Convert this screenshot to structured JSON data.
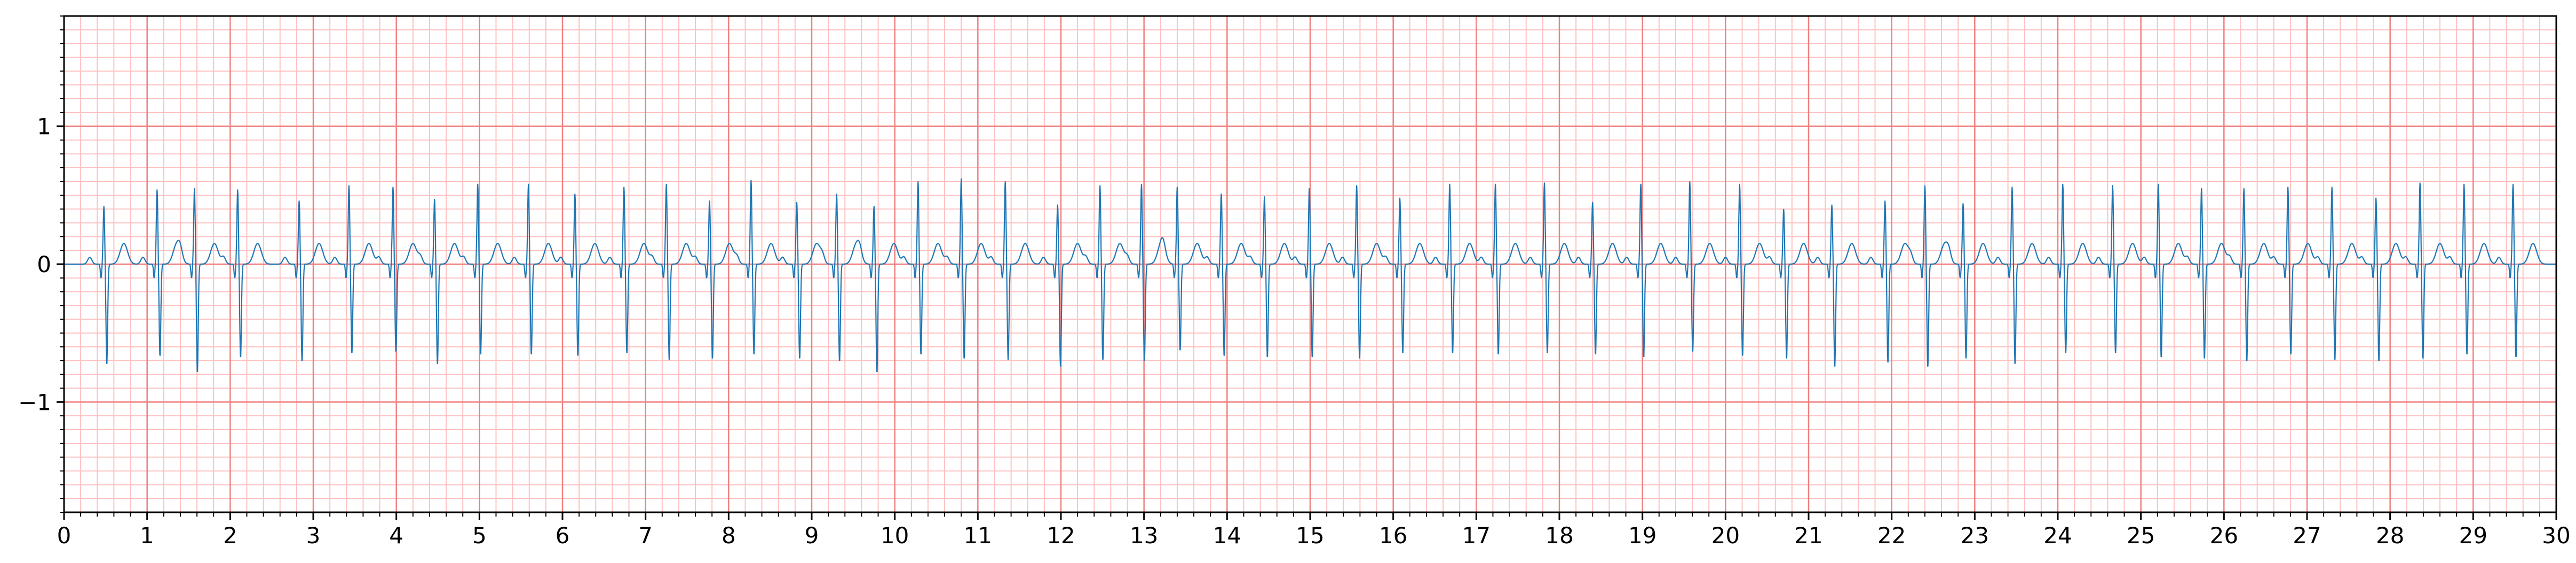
{
  "chart_data": {
    "type": "line",
    "title": "",
    "xlabel": "",
    "ylabel": "",
    "xlim": [
      0,
      30
    ],
    "ylim": [
      -1.8,
      1.8
    ],
    "grid": true,
    "x_ticks": [
      0,
      1,
      2,
      3,
      4,
      5,
      6,
      7,
      8,
      9,
      10,
      11,
      12,
      13,
      14,
      15,
      16,
      17,
      18,
      19,
      20,
      21,
      22,
      23,
      24,
      25,
      26,
      27,
      28,
      29,
      30
    ],
    "x_tick_labels": [
      "0",
      "1",
      "2",
      "3",
      "4",
      "5",
      "6",
      "7",
      "8",
      "9",
      "10",
      "11",
      "12",
      "13",
      "14",
      "15",
      "16",
      "17",
      "18",
      "19",
      "20",
      "21",
      "22",
      "23",
      "24",
      "25",
      "26",
      "27",
      "28",
      "29",
      "30"
    ],
    "y_ticks": [
      -1,
      0,
      1
    ],
    "y_tick_labels": [
      "−1",
      "0",
      "1"
    ],
    "x_minor_step": 0.2,
    "y_minor_step": 0.1,
    "series": [
      {
        "color": "#1f77b4",
        "beat_times": [
          0.48,
          1.12,
          1.57,
          2.09,
          2.83,
          3.43,
          3.96,
          4.46,
          4.98,
          5.59,
          6.15,
          6.74,
          7.25,
          7.77,
          8.27,
          8.82,
          9.3,
          9.75,
          10.28,
          10.8,
          11.33,
          11.96,
          12.47,
          12.97,
          13.4,
          13.93,
          14.45,
          14.99,
          15.56,
          16.08,
          16.68,
          17.23,
          17.82,
          18.4,
          18.98,
          19.57,
          20.17,
          20.7,
          21.28,
          21.92,
          22.4,
          22.86,
          23.45,
          24.06,
          24.66,
          25.21,
          25.73,
          26.24,
          26.77,
          27.3,
          27.83,
          28.36,
          28.89,
          29.48
        ],
        "r_peaks": [
          0.42,
          0.54,
          0.55,
          0.54,
          0.46,
          0.57,
          0.56,
          0.47,
          0.58,
          0.58,
          0.51,
          0.56,
          0.58,
          0.46,
          0.61,
          0.45,
          0.51,
          0.42,
          0.6,
          0.62,
          0.6,
          0.43,
          0.57,
          0.58,
          0.56,
          0.51,
          0.49,
          0.55,
          0.57,
          0.48,
          0.58,
          0.58,
          0.59,
          0.45,
          0.58,
          0.6,
          0.58,
          0.4,
          0.43,
          0.46,
          0.57,
          0.44,
          0.56,
          0.58,
          0.57,
          0.58,
          0.55,
          0.55,
          0.56,
          0.56,
          0.48,
          0.59,
          0.58,
          0.58
        ],
        "s_troughs": [
          -0.73,
          -0.67,
          -0.79,
          -0.68,
          -0.71,
          -0.65,
          -0.64,
          -0.73,
          -0.66,
          -0.66,
          -0.67,
          -0.65,
          -0.7,
          -0.69,
          -0.66,
          -0.69,
          -0.71,
          -0.79,
          -0.66,
          -0.69,
          -0.7,
          -0.75,
          -0.7,
          -0.71,
          -0.63,
          -0.67,
          -0.68,
          -0.68,
          -0.69,
          -0.65,
          -0.65,
          -0.66,
          -0.65,
          -0.66,
          -0.68,
          -0.64,
          -0.67,
          -0.69,
          -0.75,
          -0.72,
          -0.75,
          -0.69,
          -0.73,
          -0.65,
          -0.65,
          -0.68,
          -0.69,
          -0.71,
          -0.66,
          -0.7,
          -0.71,
          -0.69,
          -0.66,
          -0.68
        ],
        "t_wave_amplitude": 0.15,
        "baseline": 0.0
      }
    ]
  }
}
